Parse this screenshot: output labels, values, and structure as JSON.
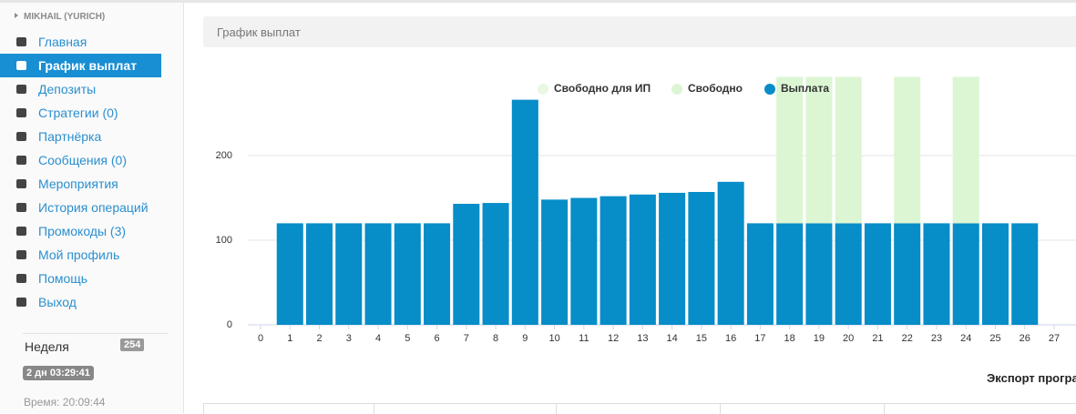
{
  "sidebar": {
    "user": "MIKHAIL (YURICH)",
    "menu": [
      {
        "label": "Главная"
      },
      {
        "label": "График выплат",
        "active": true
      },
      {
        "label": "Депозиты"
      },
      {
        "label": "Стратегии (0)"
      },
      {
        "label": "Партнёрка"
      },
      {
        "label": "Сообщения (0)"
      },
      {
        "label": "Мероприятия"
      },
      {
        "label": "История операций"
      },
      {
        "label": "Промокоды (3)"
      },
      {
        "label": "Мой профиль"
      },
      {
        "label": "Помощь"
      },
      {
        "label": "Выход"
      }
    ],
    "week_label": "Неделя",
    "week_badge": "254",
    "timer": "2 дн 03:29:41",
    "time": "Время: 20:09:44"
  },
  "panel": {
    "title": "График выплат",
    "export": "Экспорт програ"
  },
  "chart_data": {
    "type": "stacked_bar",
    "x": [
      1,
      2,
      3,
      4,
      5,
      6,
      7,
      8,
      9,
      10,
      11,
      12,
      13,
      14,
      15,
      16,
      17,
      18,
      19,
      20,
      21,
      22,
      23,
      24,
      25,
      26
    ],
    "series": [
      {
        "name": "Свободно для ИП",
        "color": "#eaf7e3",
        "values": [
          null,
          null,
          null,
          null,
          null,
          null,
          null,
          null,
          null,
          null,
          null,
          null,
          null,
          null,
          null,
          null,
          null,
          null,
          null,
          null,
          null,
          null,
          null,
          null,
          null,
          null
        ]
      },
      {
        "name": "Свободно",
        "color": "#dcf6d3",
        "values": [
          null,
          null,
          null,
          null,
          null,
          null,
          null,
          null,
          null,
          null,
          null,
          null,
          null,
          null,
          null,
          null,
          null,
          173,
          173,
          173,
          null,
          173,
          null,
          173,
          null,
          null
        ]
      },
      {
        "name": "Выплата",
        "color": "#078dc8",
        "values": [
          120,
          120,
          120,
          120,
          120,
          120,
          143,
          144,
          266,
          148,
          150,
          152,
          154,
          156,
          157,
          169,
          120,
          120,
          120,
          120,
          120,
          120,
          120,
          120,
          120,
          120
        ]
      }
    ],
    "xlim": [
      0,
      27
    ],
    "xticks": [
      0,
      1,
      2,
      3,
      4,
      5,
      6,
      7,
      8,
      9,
      10,
      11,
      12,
      13,
      14,
      15,
      16,
      17,
      18,
      19,
      20,
      21,
      22,
      23,
      24,
      25,
      26,
      27
    ],
    "ylim": [
      0,
      300
    ],
    "yticks": [
      0,
      100,
      200
    ],
    "grid": true
  }
}
